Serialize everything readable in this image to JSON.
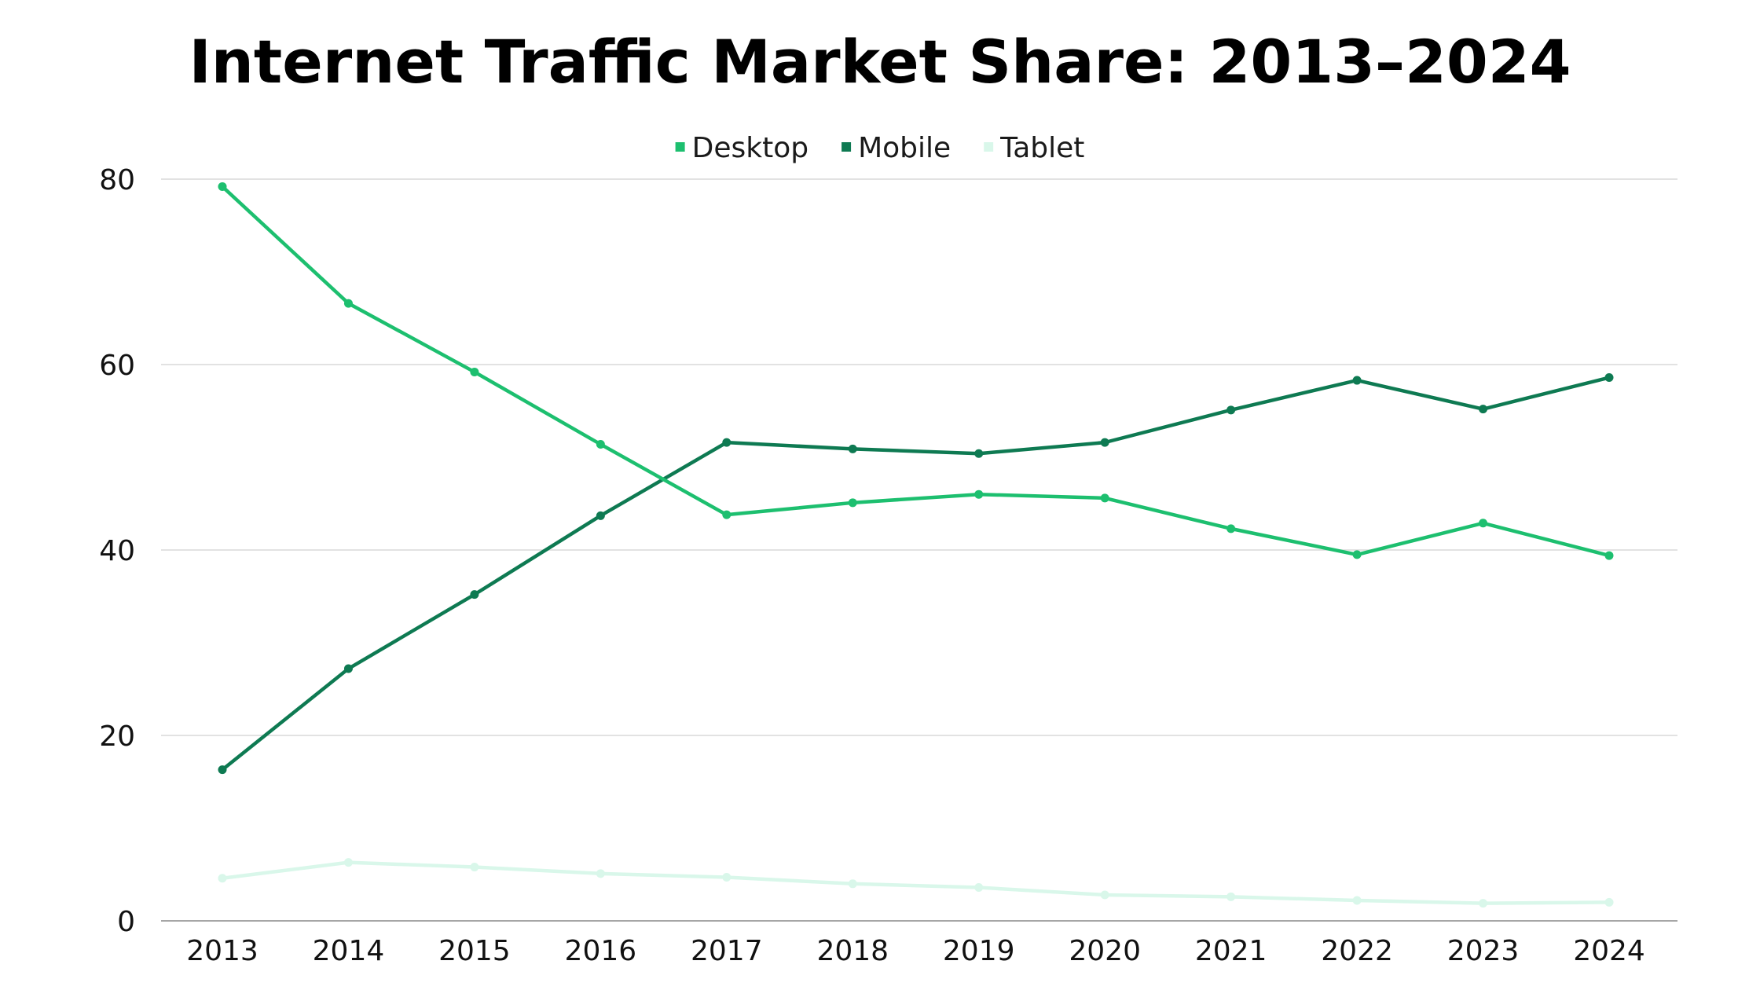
{
  "chart_data": {
    "type": "line",
    "title": "Internet Traffic Market Share: 2013–2024",
    "xlabel": "",
    "ylabel": "",
    "categories": [
      "2013",
      "2014",
      "2015",
      "2016",
      "2017",
      "2018",
      "2019",
      "2020",
      "2021",
      "2022",
      "2023",
      "2024"
    ],
    "ylim": [
      0,
      80
    ],
    "yticks": [
      "0",
      "20",
      "40",
      "60",
      "80"
    ],
    "grid": true,
    "legend_position": "top-center",
    "series": [
      {
        "name": "Desktop",
        "color": "#1dbf6f",
        "values": [
          79.2,
          66.6,
          59.2,
          51.4,
          43.8,
          45.1,
          46.0,
          45.6,
          42.3,
          39.5,
          42.9,
          39.4
        ]
      },
      {
        "name": "Mobile",
        "color": "#0e7a52",
        "values": [
          16.3,
          27.2,
          35.2,
          43.7,
          51.6,
          50.9,
          50.4,
          51.6,
          55.1,
          58.3,
          55.2,
          58.6
        ]
      },
      {
        "name": "Tablet",
        "color": "#d9f7ea",
        "values": [
          4.6,
          6.3,
          5.8,
          5.1,
          4.7,
          4.0,
          3.6,
          2.8,
          2.6,
          2.2,
          1.9,
          2.0
        ]
      }
    ]
  }
}
